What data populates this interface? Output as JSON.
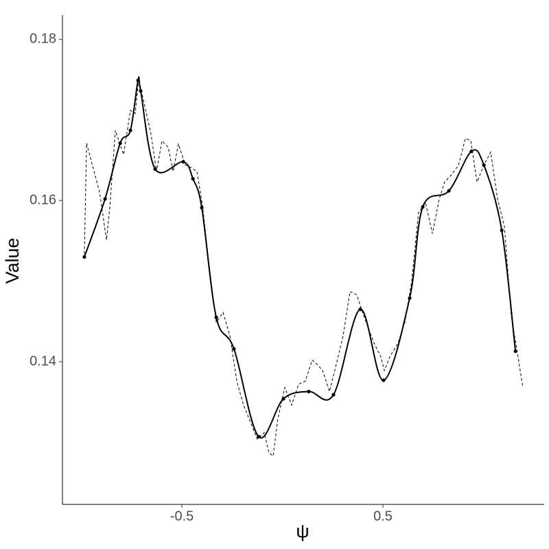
{
  "chart_data": {
    "type": "line",
    "x_label": "ψ",
    "y_label": "Value",
    "xlim": [
      -1.094,
      1.302
    ],
    "ylim": [
      0.1223,
      0.183
    ],
    "xticks": [
      -0.5,
      0.5
    ],
    "yticks": [
      0.14,
      0.16,
      0.18
    ],
    "series": [
      {
        "color": "#000000",
        "dashed": false,
        "smooth": true,
        "markers": true,
        "x": [
          -0.985,
          -0.882,
          -0.807,
          -0.756,
          -0.718,
          -0.705,
          -0.633,
          -0.493,
          -0.445,
          -0.401,
          -0.329,
          -0.241,
          -0.118,
          0.005,
          0.131,
          0.254,
          0.387,
          0.503,
          0.633,
          0.698,
          0.828,
          0.94,
          1.002,
          1.091,
          1.159
        ],
        "values": [
          0.153,
          0.1602,
          0.1671,
          0.1687,
          0.1749,
          0.1736,
          0.1639,
          0.1648,
          0.1627,
          0.1591,
          0.1455,
          0.1416,
          0.1307,
          0.1354,
          0.1363,
          0.1359,
          0.1465,
          0.1377,
          0.1479,
          0.1592,
          0.1612,
          0.1661,
          0.1644,
          0.1563,
          0.1413
        ]
      },
      {
        "color": "#000000",
        "dashed": true,
        "smooth": false,
        "markers": false,
        "x": [
          -0.985,
          -0.974,
          -0.909,
          -0.875,
          -0.858,
          -0.831,
          -0.79,
          -0.756,
          -0.732,
          -0.715,
          -0.688,
          -0.654,
          -0.626,
          -0.599,
          -0.568,
          -0.544,
          -0.517,
          -0.483,
          -0.448,
          -0.425,
          -0.397,
          -0.363,
          -0.329,
          -0.295,
          -0.261,
          -0.227,
          -0.193,
          -0.159,
          -0.125,
          -0.09,
          -0.067,
          -0.046,
          -0.023,
          0.012,
          0.046,
          0.08,
          0.114,
          0.148,
          0.172,
          0.2,
          0.234,
          0.268,
          0.302,
          0.336,
          0.37,
          0.404,
          0.456,
          0.49,
          0.507,
          0.534,
          0.575,
          0.609,
          0.643,
          0.677,
          0.712,
          0.746,
          0.78,
          0.807,
          0.841,
          0.876,
          0.91,
          0.937,
          0.968,
          1.002,
          1.036,
          1.07,
          1.104,
          1.138,
          1.172,
          1.196
        ],
        "values": [
          0.1534,
          0.1671,
          0.161,
          0.1551,
          0.1593,
          0.1687,
          0.1657,
          0.1712,
          0.1708,
          0.1751,
          0.1721,
          0.1683,
          0.1636,
          0.1674,
          0.1666,
          0.1636,
          0.167,
          0.1644,
          0.164,
          0.1636,
          0.1593,
          0.1517,
          0.1449,
          0.1461,
          0.1432,
          0.1376,
          0.1346,
          0.1325,
          0.1304,
          0.1312,
          0.1287,
          0.1283,
          0.1329,
          0.1368,
          0.1346,
          0.1372,
          0.1376,
          0.1402,
          0.1397,
          0.1389,
          0.1363,
          0.1397,
          0.1432,
          0.1487,
          0.1483,
          0.1457,
          0.1423,
          0.1406,
          0.1389,
          0.1406,
          0.1423,
          0.1449,
          0.15,
          0.1585,
          0.1597,
          0.1559,
          0.1602,
          0.1623,
          0.1632,
          0.1644,
          0.1677,
          0.1674,
          0.1623,
          0.1644,
          0.166,
          0.1602,
          0.1568,
          0.1457,
          0.1406,
          0.1368
        ]
      }
    ]
  }
}
